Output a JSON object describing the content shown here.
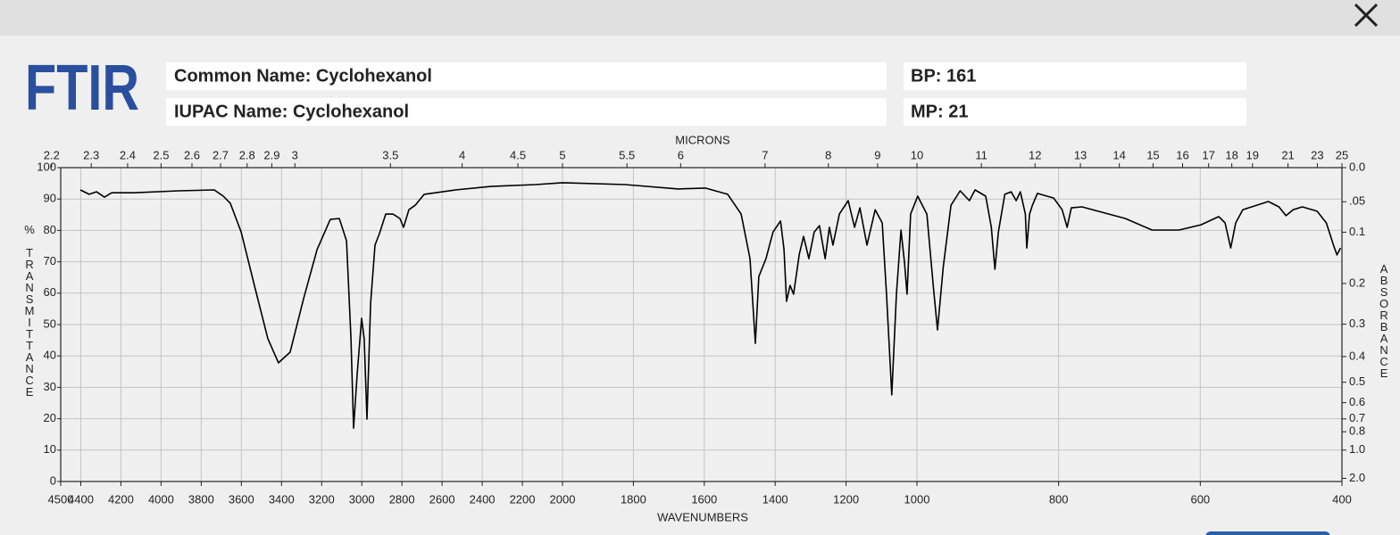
{
  "header": {
    "logo": "FTIR",
    "common_name": "Common Name: Cyclohexanol",
    "iupac_name": "IUPAC Name: Cyclohexanol",
    "bp": "BP: 161",
    "mp": "MP: 21"
  },
  "chart_data": {
    "type": "line",
    "xlabel": "WAVENUMBERS",
    "x2label": "MICRONS",
    "ylabel": "% TRANSMITTANCE",
    "y2label": "ABSORBANCE",
    "xlim": [
      4500,
      400
    ],
    "xscale_breaks": [
      2000,
      1000
    ],
    "xticks": [
      4500,
      4400,
      4200,
      4000,
      3800,
      3600,
      3400,
      3200,
      3000,
      2800,
      2600,
      2400,
      2200,
      2000,
      1800,
      1600,
      1400,
      1200,
      1000,
      800,
      600,
      400
    ],
    "x2ticks": [
      2.2,
      2.3,
      2.4,
      2.5,
      2.6,
      2.7,
      2.8,
      2.9,
      3,
      3.5,
      4,
      4.5,
      5,
      5.5,
      6,
      7,
      8,
      9,
      10,
      11,
      12,
      13,
      14,
      15,
      16,
      17,
      18,
      19,
      21,
      23,
      25
    ],
    "ylim": [
      0,
      100
    ],
    "yticks": [
      0,
      10,
      20,
      30,
      40,
      50,
      60,
      70,
      80,
      90,
      100
    ],
    "y2ticks": [
      {
        "value": 0,
        "label": "0.0"
      },
      {
        "value": 0.05,
        "label": ".05"
      },
      0.1,
      0.2,
      0.3,
      0.4,
      0.5,
      0.6,
      0.7,
      0.8,
      {
        "value": 1,
        "label": "1.0"
      },
      {
        "value": 2,
        "label": "2.0"
      }
    ],
    "grid": true,
    "color": "#000000",
    "x": [
      4402,
      4358,
      4322,
      4282,
      4246,
      4135,
      3913,
      3735,
      3690,
      3655,
      3601,
      3535,
      3468,
      3415,
      3357,
      3290,
      3223,
      3157,
      3112,
      3076,
      3054,
      3041,
      3023,
      3001,
      2988,
      2974,
      2956,
      2934,
      2912,
      2881,
      2845,
      2810,
      2792,
      2765,
      2734,
      2689,
      2534,
      2356,
      2133,
      2000,
      1824,
      1673,
      1597,
      1534,
      1496,
      1471,
      1456,
      1446,
      1426,
      1406,
      1385,
      1375,
      1368,
      1358,
      1348,
      1332,
      1320,
      1305,
      1290,
      1275,
      1259,
      1247,
      1237,
      1219,
      1194,
      1176,
      1161,
      1141,
      1118,
      1098,
      1086,
      1071,
      1058,
      1045,
      1035,
      1028,
      1018,
      999,
      986,
      977,
      971,
      963,
      952,
      939,
      926,
      918,
      903,
      895,
      890,
      885,
      876,
      867,
      860,
      854,
      847,
      845,
      841,
      837,
      830,
      807,
      795,
      788,
      782,
      767,
      706,
      668,
      630,
      599,
      574,
      565,
      557,
      550,
      540,
      504,
      489,
      479,
      469,
      456,
      435,
      422,
      412,
      407,
      402
    ],
    "values": [
      92.9,
      91.5,
      92.3,
      90.6,
      92,
      92,
      92.6,
      92.9,
      90.9,
      88.6,
      79.5,
      62.5,
      45.5,
      37.8,
      41.2,
      58.2,
      73.9,
      83.5,
      83.8,
      76.7,
      45.5,
      17,
      34.1,
      52,
      45.5,
      19.9,
      56.8,
      75.3,
      79,
      85.2,
      85.2,
      83.8,
      81,
      86.6,
      88,
      91.5,
      92.9,
      94,
      94.6,
      95.2,
      94.6,
      93.2,
      93.5,
      91.5,
      85.2,
      71,
      44,
      65.3,
      71,
      79.5,
      83,
      73.9,
      57.4,
      62.5,
      59.7,
      72.4,
      78.1,
      71,
      79.5,
      81.5,
      71,
      81,
      75.3,
      85.2,
      89.5,
      81,
      87.2,
      75.3,
      86.6,
      82.4,
      59.7,
      27.6,
      59.7,
      80.1,
      69.6,
      59.7,
      85.2,
      90.9,
      85.2,
      62.5,
      48.3,
      68.2,
      88,
      92.6,
      89.5,
      92.9,
      90.9,
      81,
      67.6,
      79.5,
      91.5,
      92.3,
      89.5,
      92.3,
      85.2,
      74.4,
      85.2,
      88,
      91.8,
      90.3,
      86.6,
      81,
      87.2,
      87.5,
      83.8,
      80.1,
      80.1,
      81.8,
      84.4,
      82.4,
      74.4,
      82.4,
      86.6,
      89.2,
      87.5,
      84.7,
      86.6,
      87.5,
      86.1,
      82.4,
      75.3,
      72.2,
      74.4
    ]
  }
}
